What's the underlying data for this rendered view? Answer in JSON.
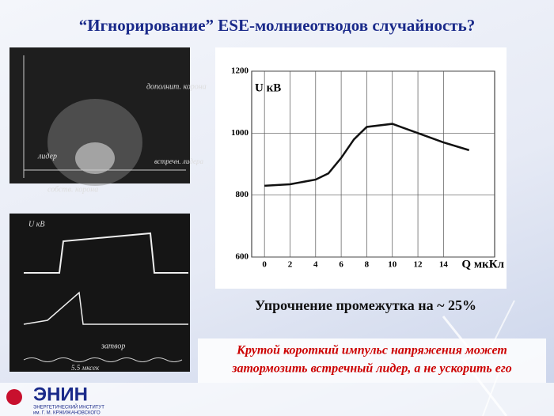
{
  "title": "“Игнорирование” ESE-молниеотводов случайность?",
  "photo1": {
    "labels": [
      "дополнит. корона",
      "лидер",
      "собств. корона",
      "встречн. лидера"
    ]
  },
  "photo2": {
    "labels": [
      "U кВ",
      "затвор",
      "5.5 мксек"
    ]
  },
  "chart_data": {
    "type": "line",
    "ylabel": "U  кВ",
    "xlabel": "Q мкКл",
    "x": [
      0,
      2,
      4,
      5,
      6,
      7,
      8,
      10,
      12,
      14,
      16
    ],
    "series": [
      {
        "name": "U",
        "color": "#111111",
        "values": [
          830,
          835,
          850,
          870,
          920,
          980,
          1020,
          1030,
          1000,
          970,
          945
        ]
      }
    ],
    "xlim": [
      -1,
      18
    ],
    "ylim": [
      600,
      1200
    ],
    "xticks": [
      0,
      2,
      4,
      6,
      8,
      10,
      12,
      14
    ],
    "yticks": [
      600,
      800,
      1000,
      1200
    ],
    "grid": true
  },
  "caption": "Упрочнение промежутка  на ~ 25%",
  "note": [
    "Крутой короткий импульс напряжения может",
    "затормозить встречный лидер, а не ускорить его"
  ],
  "logo": {
    "name": "ЭНИН",
    "sub": [
      "ЭНЕРГЕТИЧЕСКИЙ ИНСТИТУТ",
      "им. Г. М. КРЖИЖАНОВСКОГО"
    ]
  }
}
